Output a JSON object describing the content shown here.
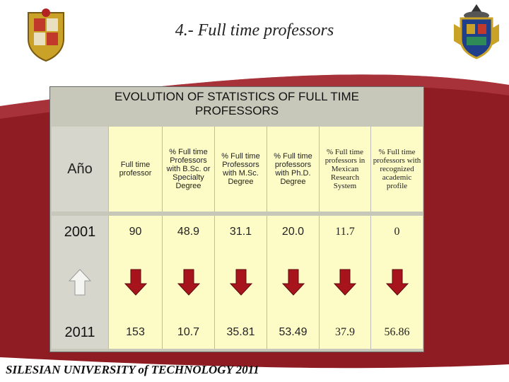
{
  "slide": {
    "title": "4.- Full time professors",
    "footer": "SILESIAN UNIVERSITY of TECHNOLOGY 2011",
    "heading": "EVOLUTION OF STATISTICS OF FULL TIME PROFESSORS"
  },
  "table": {
    "corner": "Año",
    "headers": [
      "Full time professor",
      "% Full time Professors with B.Sc. or Specialty Degree",
      "% Full time Professors with M.Sc. Degree",
      "% Full time professors with Ph.D. Degree",
      "% Full time professors in Mexican Research System",
      "% Full time professors with recognized academic profile"
    ],
    "rows": [
      {
        "year": "2001",
        "values": [
          "90",
          "48.9",
          "31.1",
          "20.0",
          "11.7",
          "0"
        ]
      },
      {
        "year": "2011",
        "values": [
          "153",
          "10.7",
          "35.81",
          "53.49",
          "37.9",
          "56.86"
        ]
      }
    ],
    "arrows": [
      "up",
      "down",
      "down",
      "down",
      "down",
      "down",
      "down"
    ]
  },
  "colors": {
    "background": "#8e1c22",
    "header_band": "#fdfcc6",
    "arrow_white": "#f4f4f0",
    "arrow_red": "#a8141c"
  }
}
